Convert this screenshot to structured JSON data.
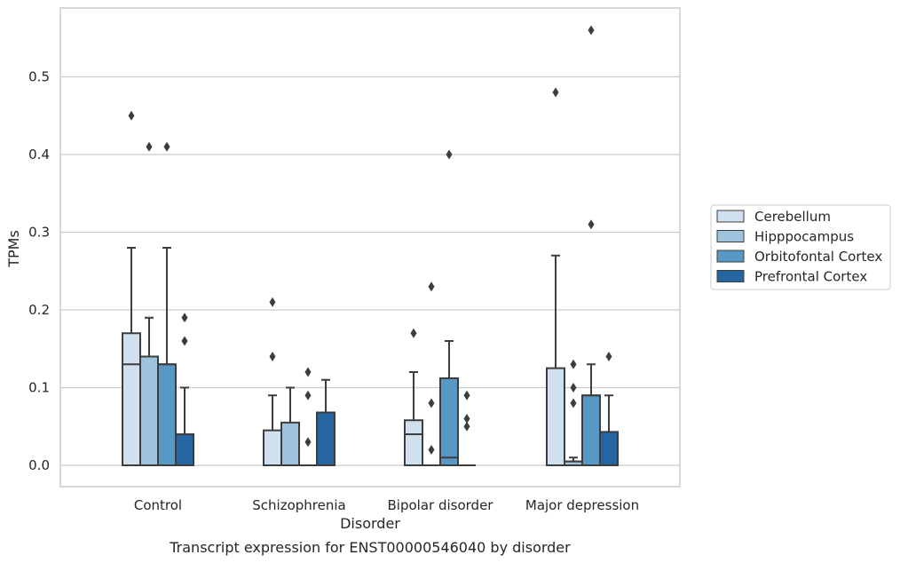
{
  "chart_data": {
    "type": "box",
    "xlabel": "Disorder",
    "ylabel": "TPMs",
    "caption": "Transcript expression for ENST00000546040 by disorder",
    "categories": [
      "Control",
      "Schizophrenia",
      "Bipolar disorder",
      "Major depression"
    ],
    "yticks": [
      0.0,
      0.1,
      0.2,
      0.3,
      0.4,
      0.5
    ],
    "ytick_labels": [
      "0.0",
      "0.1",
      "0.2",
      "0.3",
      "0.4",
      "0.5"
    ],
    "ylim": [
      -0.028,
      0.59
    ],
    "grid": "horizontal",
    "legend_position": "right",
    "series": [
      {
        "name": "Cerebellum",
        "color": "#d0e0ef",
        "boxes": [
          {
            "whislo": 0,
            "q1": 0,
            "med": 0.13,
            "q3": 0.17,
            "whishi": 0.28,
            "fliers": [
              0.45
            ]
          },
          {
            "whislo": 0,
            "q1": 0,
            "med": 0,
            "q3": 0.045,
            "whishi": 0.09,
            "fliers": [
              0.14,
              0.21
            ]
          },
          {
            "whislo": 0,
            "q1": 0,
            "med": 0.04,
            "q3": 0.058,
            "whishi": 0.12,
            "fliers": [
              0.17
            ]
          },
          {
            "whislo": 0,
            "q1": 0,
            "med": 0,
            "q3": 0.125,
            "whishi": 0.27,
            "fliers": [
              0.48
            ]
          }
        ]
      },
      {
        "name": "Hipppocampus",
        "color": "#9dc4dc",
        "boxes": [
          {
            "whislo": 0,
            "q1": 0,
            "med": 0.14,
            "q3": 0.14,
            "whishi": 0.19,
            "fliers": [
              0.41
            ]
          },
          {
            "whislo": 0,
            "q1": 0,
            "med": 0,
            "q3": 0.055,
            "whishi": 0.1,
            "fliers": []
          },
          {
            "whislo": 0,
            "q1": 0,
            "med": 0,
            "q3": 0,
            "whishi": 0,
            "fliers": [
              0.02,
              0.08,
              0.23
            ]
          },
          {
            "whislo": 0,
            "q1": 0,
            "med": 0.005,
            "q3": 0.005,
            "whishi": 0.01,
            "fliers": [
              0.08,
              0.1,
              0.13
            ]
          }
        ]
      },
      {
        "name": "Orbitofontal Cortex",
        "color": "#5898c5",
        "boxes": [
          {
            "whislo": 0,
            "q1": 0,
            "med": 0.13,
            "q3": 0.13,
            "whishi": 0.28,
            "fliers": [
              0.41
            ]
          },
          {
            "whislo": 0,
            "q1": 0,
            "med": 0,
            "q3": 0,
            "whishi": 0,
            "fliers": [
              0.03,
              0.09,
              0.12
            ]
          },
          {
            "whislo": 0,
            "q1": 0,
            "med": 0.01,
            "q3": 0.112,
            "whishi": 0.16,
            "fliers": [
              0.4
            ]
          },
          {
            "whislo": 0,
            "q1": 0,
            "med": 0.09,
            "q3": 0.09,
            "whishi": 0.13,
            "fliers": [
              0.31,
              0.56
            ]
          }
        ]
      },
      {
        "name": "Prefrontal Cortex",
        "color": "#2565a1",
        "boxes": [
          {
            "whislo": 0,
            "q1": 0,
            "med": 0,
            "q3": 0.04,
            "whishi": 0.1,
            "fliers": [
              0.16,
              0.19
            ]
          },
          {
            "whislo": 0,
            "q1": 0,
            "med": 0,
            "q3": 0.068,
            "whishi": 0.11,
            "fliers": []
          },
          {
            "whislo": 0,
            "q1": 0,
            "med": 0,
            "q3": 0,
            "whishi": 0,
            "fliers": [
              0.05,
              0.06,
              0.09
            ]
          },
          {
            "whislo": 0,
            "q1": 0,
            "med": 0,
            "q3": 0.043,
            "whishi": 0.09,
            "fliers": [
              0.14
            ]
          }
        ]
      }
    ]
  }
}
